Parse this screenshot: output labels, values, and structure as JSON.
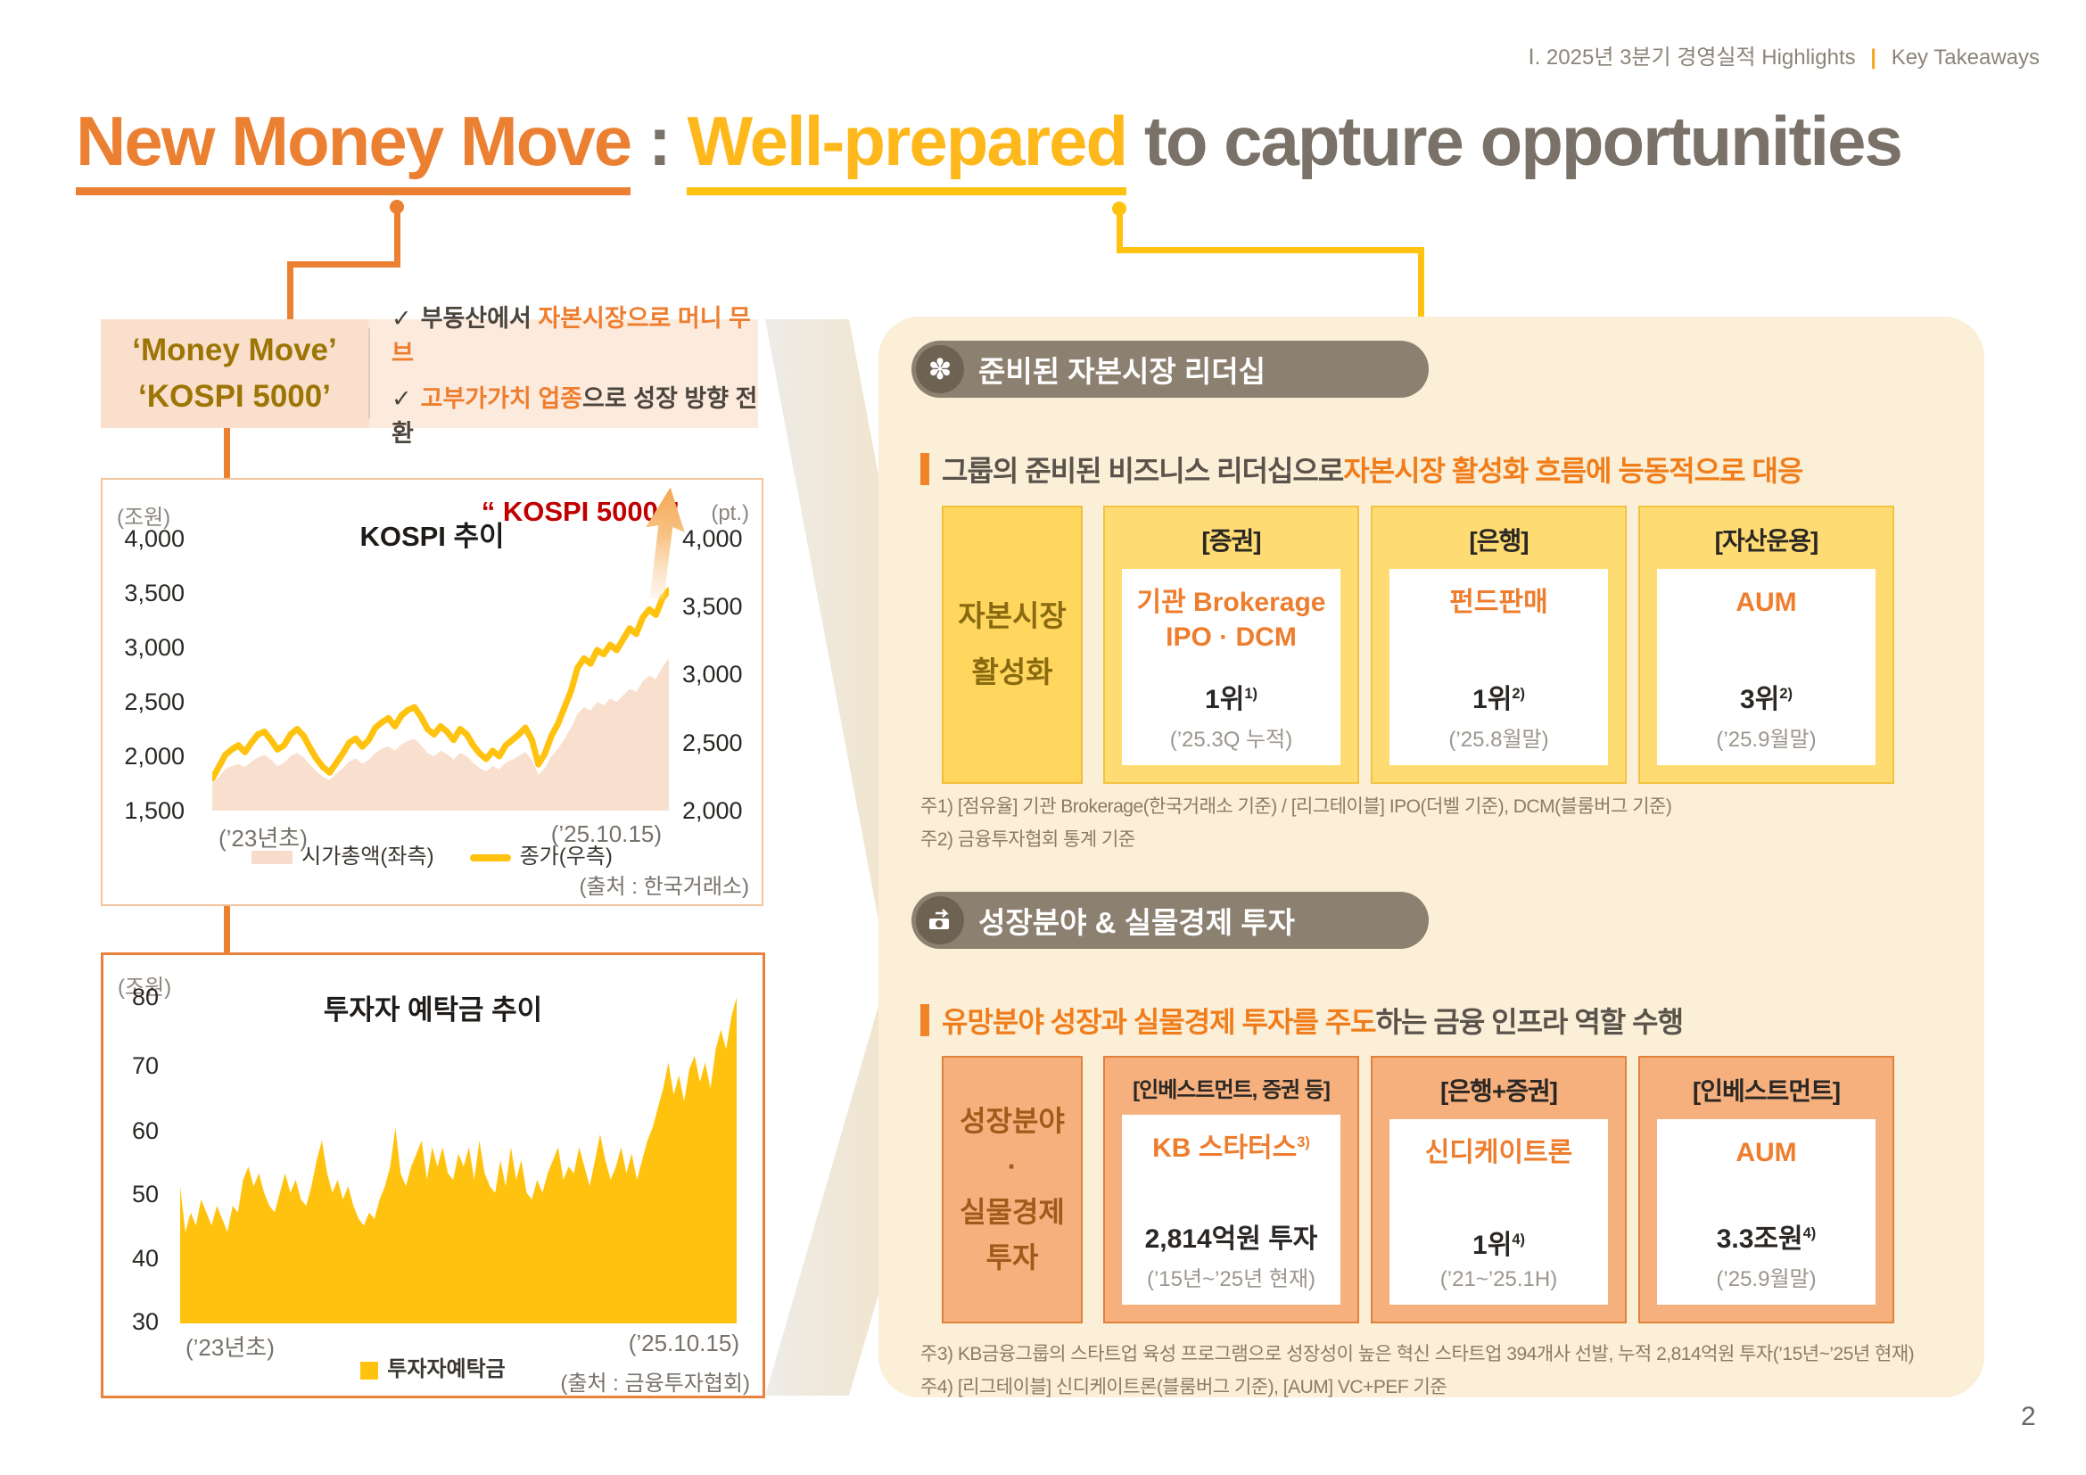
{
  "header": {
    "section": "Ⅰ. 2025년 3분기 경영실적 Highlights",
    "divider": "|",
    "subsection": "Key Takeaways"
  },
  "title": {
    "highlight1": "New Money Move",
    "separator": ":",
    "highlight2": "Well-prepared",
    "rest": "to capture opportunities"
  },
  "page_number": "2",
  "callout": {
    "label_line1": "‘Money Move’",
    "label_line2": "‘KOSPI 5000’",
    "check_glyph": "✓",
    "check1_prefix": "부동산에서 ",
    "check1_highlight": "자본시장으로 머니 무브",
    "check2_highlight": "고부가가치 업종",
    "check2_suffix": "으로 성장 방향 전환"
  },
  "section1": {
    "pill_label": "준비된 자본시장 리더십",
    "pill_icon_glyph": "✽",
    "lead_dark": "그룹의 준비된 비즈니스 리더십으로 ",
    "lead_orange": "자본시장 활성화 흐름에 능동적으로 대응",
    "side_lines": [
      "자본시장",
      "활성화"
    ],
    "boxes": [
      {
        "header": "[증권]",
        "title1": "기관 Brokerage",
        "title2": "IPO · DCM",
        "title_sup": "",
        "value": "1위",
        "value_sup": "1)",
        "note": "(’25.3Q 누적)"
      },
      {
        "header": "[은행]",
        "title1": "펀드판매",
        "title2": "",
        "title_sup": "",
        "value": "1위",
        "value_sup": "2)",
        "note": "(’25.8월말)"
      },
      {
        "header": "[자산운용]",
        "title1": "AUM",
        "title2": "",
        "title_sup": "",
        "value": "3위",
        "value_sup": "2)",
        "note": "(’25.9월말)"
      }
    ],
    "footnotes": [
      "주1) [점유율] 기관 Brokerage(한국거래소 기준) / [리그테이블] IPO(더벨 기준), DCM(블룸버그 기준)",
      "주2) 금융투자협회 통계 기준"
    ]
  },
  "section2": {
    "pill_label": "성장분야 & 실물경제 투자",
    "lead_orange": "유망분야 성장과 실물경제 투자를 주도",
    "lead_dark": "하는 금융 인프라 역할 수행",
    "side_lines": [
      "성장분야",
      "·",
      "실물경제",
      "투자"
    ],
    "boxes": [
      {
        "header": "[인베스트먼트, 증권 등]",
        "title1": "KB 스타터스",
        "title2": "",
        "title_sup": "3)",
        "value": "2,814억원 투자",
        "value_sup": "",
        "note": "(’15년~’25년 현재)"
      },
      {
        "header": "[은행+증권]",
        "title1": "신디케이트론",
        "title2": "",
        "title_sup": "",
        "value": "1위",
        "value_sup": "4)",
        "note": "(’21~’25.1H)"
      },
      {
        "header": "[인베스트먼트]",
        "title1": "AUM",
        "title2": "",
        "title_sup": "",
        "value": "3.3조원",
        "value_sup": "4)",
        "note": "(’25.9월말)"
      }
    ],
    "footnotes": [
      "주3) KB금융그룹의 스타트업 육성 프로그램으로 성장성이 높은 혁신 스타트업 394개사 선발, 누적 2,814억원 투자(’15년~’25년 현재)",
      "주4) [리그테이블] 신디케이트론(블룸버그 기준), [AUM] VC+PEF 기준"
    ]
  },
  "colors": {
    "accent_orange": "#EC8032",
    "accent_gold": "#FFC20E",
    "kospi_red": "#C00000",
    "panel_cream": "#FBEFD8",
    "pill_taupe": "#8C8071"
  },
  "chart_data": [
    {
      "type": "line",
      "title": "KOSPI 추이",
      "annotation": "“ KOSPI 5000 ”",
      "left_axis": {
        "unit": "(조원)",
        "range": [
          1500,
          4000
        ]
      },
      "right_axis": {
        "unit": "(pt.)",
        "range": [
          2000,
          4000
        ]
      },
      "left_ticks": [
        "4,000",
        "3,500",
        "3,000",
        "2,500",
        "2,000",
        "1,500"
      ],
      "right_ticks": [
        "4,000",
        "3,500",
        "3,000",
        "2,500",
        "2,000"
      ],
      "x_start_label": "(’23년초)",
      "x_end_label": "(’25.10.15)",
      "source": "(출처 : 한국거래소)",
      "series": [
        {
          "name": "시가총액(좌측)",
          "axis": "left",
          "type": "area",
          "color": "#F9DFCE",
          "values": [
            1750,
            1810,
            1880,
            1910,
            1930,
            1900,
            1950,
            1990,
            2010,
            1970,
            1910,
            1940,
            2000,
            2030,
            1990,
            1920,
            1860,
            1810,
            1780,
            1840,
            1890,
            1950,
            1980,
            1930,
            1970,
            2030,
            2070,
            2090,
            2050,
            2110,
            2140,
            2160,
            2100,
            2030,
            2000,
            2050,
            2020,
            1970,
            2030,
            2000,
            1940,
            1890,
            1860,
            1910,
            1880,
            1940,
            1970,
            2000,
            2040,
            1970,
            1830,
            1890,
            2000,
            2070,
            2160,
            2260,
            2390,
            2450,
            2420,
            2500,
            2470,
            2530,
            2500,
            2560,
            2620,
            2590,
            2690,
            2740,
            2710,
            2820,
            2900
          ]
        },
        {
          "name": "종가(우측)",
          "axis": "right",
          "type": "line",
          "color": "#FFC20E",
          "stroke_width": 7,
          "values": [
            2236,
            2320,
            2410,
            2450,
            2480,
            2430,
            2500,
            2560,
            2580,
            2520,
            2450,
            2480,
            2560,
            2600,
            2550,
            2460,
            2380,
            2320,
            2280,
            2350,
            2420,
            2500,
            2530,
            2470,
            2520,
            2610,
            2650,
            2680,
            2620,
            2700,
            2740,
            2760,
            2690,
            2600,
            2560,
            2620,
            2580,
            2520,
            2600,
            2560,
            2480,
            2420,
            2380,
            2440,
            2400,
            2480,
            2520,
            2560,
            2610,
            2520,
            2340,
            2420,
            2550,
            2640,
            2760,
            2880,
            3050,
            3120,
            3080,
            3180,
            3150,
            3220,
            3180,
            3260,
            3340,
            3300,
            3420,
            3480,
            3440,
            3560,
            3620
          ]
        }
      ]
    },
    {
      "type": "area",
      "title": "투자자 예탁금 추이",
      "left_axis": {
        "unit": "(조원)",
        "range": [
          30,
          80
        ]
      },
      "left_ticks": [
        "80",
        "70",
        "60",
        "50",
        "40",
        "30"
      ],
      "x_start_label": "(’23년초)",
      "x_end_label": "(’25.10.15)",
      "source": "(출처 : 금융투자협회)",
      "series": [
        {
          "name": "투자자예탁금",
          "axis": "left",
          "type": "area",
          "color": "#FFC20E",
          "values": [
            51,
            44,
            47,
            45,
            49,
            47,
            45,
            48,
            46,
            44,
            48,
            47,
            52,
            54,
            51,
            53,
            50,
            48,
            47,
            50,
            53,
            50,
            52,
            49,
            48,
            51,
            55,
            58,
            53,
            50,
            52,
            49,
            51,
            48,
            46,
            45,
            47,
            46,
            49,
            51,
            54,
            60,
            53,
            51,
            54,
            56,
            58,
            52,
            57,
            54,
            57,
            53,
            52,
            56,
            54,
            57,
            52,
            58,
            53,
            51,
            50,
            55,
            51,
            57,
            52,
            55,
            50,
            49,
            52,
            50,
            53,
            55,
            57,
            52,
            54,
            53,
            57,
            54,
            51,
            55,
            59,
            55,
            52,
            54,
            57,
            53,
            56,
            52,
            55,
            58,
            60,
            63,
            66,
            70,
            65,
            68,
            64,
            69,
            71,
            67,
            70,
            66,
            72,
            75,
            72,
            77,
            80
          ]
        }
      ]
    }
  ]
}
